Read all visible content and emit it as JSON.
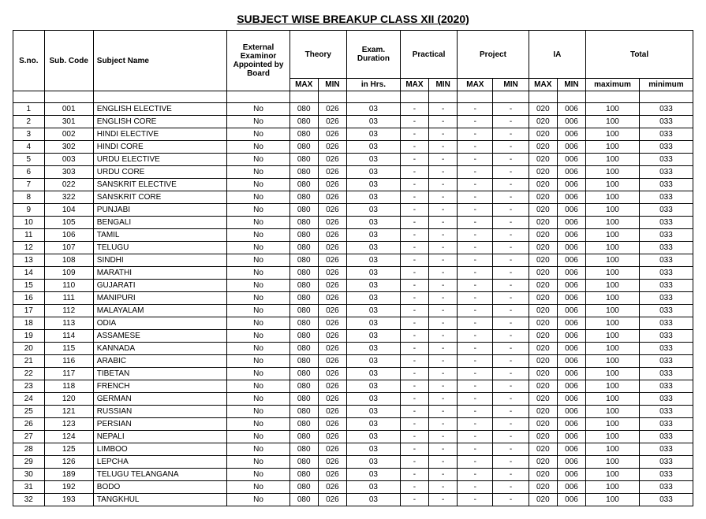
{
  "title": "SUBJECT WISE BREAKUP CLASS XII (2020)",
  "headers": {
    "sno": "S.no.",
    "subCode": "Sub. Code",
    "subjectName": "Subject Name",
    "examiner": "External Examinor Appointed by Board",
    "theory": "Theory",
    "examDuration": "Exam. Duration",
    "practical": "Practical",
    "project": "Project",
    "ia": "IA",
    "total": "Total",
    "max": "MAX",
    "min": "MIN",
    "inHrs": "in Hrs.",
    "maximum": "maximum",
    "minimum": "minimum"
  },
  "rows": [
    {
      "sno": "1",
      "code": "001",
      "name": "ENGLISH ELECTIVE",
      "ex": "No",
      "tmax": "080",
      "tmin": "026",
      "dur": "03",
      "pmax": "-",
      "pmin": "-",
      "prmax": "-",
      "prmin": "-",
      "iamax": "020",
      "iamin": "006",
      "totmax": "100",
      "totmin": "033"
    },
    {
      "sno": "2",
      "code": "301",
      "name": "ENGLISH CORE",
      "ex": "No",
      "tmax": "080",
      "tmin": "026",
      "dur": "03",
      "pmax": "-",
      "pmin": "-",
      "prmax": "-",
      "prmin": "-",
      "iamax": "020",
      "iamin": "006",
      "totmax": "100",
      "totmin": "033"
    },
    {
      "sno": "3",
      "code": "002",
      "name": "HINDI ELECTIVE",
      "ex": "No",
      "tmax": "080",
      "tmin": "026",
      "dur": "03",
      "pmax": "-",
      "pmin": "-",
      "prmax": "-",
      "prmin": "-",
      "iamax": "020",
      "iamin": "006",
      "totmax": "100",
      "totmin": "033"
    },
    {
      "sno": "4",
      "code": "302",
      "name": "HINDI CORE",
      "ex": "No",
      "tmax": "080",
      "tmin": "026",
      "dur": "03",
      "pmax": "-",
      "pmin": "-",
      "prmax": "-",
      "prmin": "-",
      "iamax": "020",
      "iamin": "006",
      "totmax": "100",
      "totmin": "033"
    },
    {
      "sno": "5",
      "code": "003",
      "name": "URDU ELECTIVE",
      "ex": "No",
      "tmax": "080",
      "tmin": "026",
      "dur": "03",
      "pmax": "-",
      "pmin": "-",
      "prmax": "-",
      "prmin": "-",
      "iamax": "020",
      "iamin": "006",
      "totmax": "100",
      "totmin": "033"
    },
    {
      "sno": "6",
      "code": "303",
      "name": "URDU CORE",
      "ex": "No",
      "tmax": "080",
      "tmin": "026",
      "dur": "03",
      "pmax": "-",
      "pmin": "-",
      "prmax": "-",
      "prmin": "-",
      "iamax": "020",
      "iamin": "006",
      "totmax": "100",
      "totmin": "033"
    },
    {
      "sno": "7",
      "code": "022",
      "name": "SANSKRIT ELECTIVE",
      "ex": "No",
      "tmax": "080",
      "tmin": "026",
      "dur": "03",
      "pmax": "-",
      "pmin": "-",
      "prmax": "-",
      "prmin": "-",
      "iamax": "020",
      "iamin": "006",
      "totmax": "100",
      "totmin": "033"
    },
    {
      "sno": "8",
      "code": "322",
      "name": "SANSKRIT CORE",
      "ex": "No",
      "tmax": "080",
      "tmin": "026",
      "dur": "03",
      "pmax": "-",
      "pmin": "-",
      "prmax": "-",
      "prmin": "-",
      "iamax": "020",
      "iamin": "006",
      "totmax": "100",
      "totmin": "033"
    },
    {
      "sno": "9",
      "code": "104",
      "name": "PUNJABI",
      "ex": "No",
      "tmax": "080",
      "tmin": "026",
      "dur": "03",
      "pmax": "-",
      "pmin": "-",
      "prmax": "-",
      "prmin": "-",
      "iamax": "020",
      "iamin": "006",
      "totmax": "100",
      "totmin": "033"
    },
    {
      "sno": "10",
      "code": "105",
      "name": "BENGALI",
      "ex": "No",
      "tmax": "080",
      "tmin": "026",
      "dur": "03",
      "pmax": "-",
      "pmin": "-",
      "prmax": "-",
      "prmin": "-",
      "iamax": "020",
      "iamin": "006",
      "totmax": "100",
      "totmin": "033"
    },
    {
      "sno": "11",
      "code": "106",
      "name": "TAMIL",
      "ex": "No",
      "tmax": "080",
      "tmin": "026",
      "dur": "03",
      "pmax": "-",
      "pmin": "-",
      "prmax": "-",
      "prmin": "-",
      "iamax": "020",
      "iamin": "006",
      "totmax": "100",
      "totmin": "033"
    },
    {
      "sno": "12",
      "code": "107",
      "name": "TELUGU",
      "ex": "No",
      "tmax": "080",
      "tmin": "026",
      "dur": "03",
      "pmax": "-",
      "pmin": "-",
      "prmax": "-",
      "prmin": "-",
      "iamax": "020",
      "iamin": "006",
      "totmax": "100",
      "totmin": "033"
    },
    {
      "sno": "13",
      "code": "108",
      "name": "SINDHI",
      "ex": "No",
      "tmax": "080",
      "tmin": "026",
      "dur": "03",
      "pmax": "-",
      "pmin": "-",
      "prmax": "-",
      "prmin": "-",
      "iamax": "020",
      "iamin": "006",
      "totmax": "100",
      "totmin": "033"
    },
    {
      "sno": "14",
      "code": "109",
      "name": "MARATHI",
      "ex": "No",
      "tmax": "080",
      "tmin": "026",
      "dur": "03",
      "pmax": "-",
      "pmin": "-",
      "prmax": "-",
      "prmin": "-",
      "iamax": "020",
      "iamin": "006",
      "totmax": "100",
      "totmin": "033"
    },
    {
      "sno": "15",
      "code": "110",
      "name": "GUJARATI",
      "ex": "No",
      "tmax": "080",
      "tmin": "026",
      "dur": "03",
      "pmax": "-",
      "pmin": "-",
      "prmax": "-",
      "prmin": "-",
      "iamax": "020",
      "iamin": "006",
      "totmax": "100",
      "totmin": "033"
    },
    {
      "sno": "16",
      "code": "111",
      "name": "MANIPURI",
      "ex": "No",
      "tmax": "080",
      "tmin": "026",
      "dur": "03",
      "pmax": "-",
      "pmin": "-",
      "prmax": "-",
      "prmin": "-",
      "iamax": "020",
      "iamin": "006",
      "totmax": "100",
      "totmin": "033"
    },
    {
      "sno": "17",
      "code": "112",
      "name": "MALAYALAM",
      "ex": "No",
      "tmax": "080",
      "tmin": "026",
      "dur": "03",
      "pmax": "-",
      "pmin": "-",
      "prmax": "-",
      "prmin": "-",
      "iamax": "020",
      "iamin": "006",
      "totmax": "100",
      "totmin": "033"
    },
    {
      "sno": "18",
      "code": "113",
      "name": "ODIA",
      "ex": "No",
      "tmax": "080",
      "tmin": "026",
      "dur": "03",
      "pmax": "-",
      "pmin": "-",
      "prmax": "-",
      "prmin": "-",
      "iamax": "020",
      "iamin": "006",
      "totmax": "100",
      "totmin": "033"
    },
    {
      "sno": "19",
      "code": "114",
      "name": "ASSAMESE",
      "ex": "No",
      "tmax": "080",
      "tmin": "026",
      "dur": "03",
      "pmax": "-",
      "pmin": "-",
      "prmax": "-",
      "prmin": "-",
      "iamax": "020",
      "iamin": "006",
      "totmax": "100",
      "totmin": "033"
    },
    {
      "sno": "20",
      "code": "115",
      "name": "KANNADA",
      "ex": "No",
      "tmax": "080",
      "tmin": "026",
      "dur": "03",
      "pmax": "-",
      "pmin": "-",
      "prmax": "-",
      "prmin": "-",
      "iamax": "020",
      "iamin": "006",
      "totmax": "100",
      "totmin": "033"
    },
    {
      "sno": "21",
      "code": "116",
      "name": "ARABIC",
      "ex": "No",
      "tmax": "080",
      "tmin": "026",
      "dur": "03",
      "pmax": "-",
      "pmin": "-",
      "prmax": "-",
      "prmin": "-",
      "iamax": "020",
      "iamin": "006",
      "totmax": "100",
      "totmin": "033"
    },
    {
      "sno": "22",
      "code": "117",
      "name": "TIBETAN",
      "ex": "No",
      "tmax": "080",
      "tmin": "026",
      "dur": "03",
      "pmax": "-",
      "pmin": "-",
      "prmax": "-",
      "prmin": "-",
      "iamax": "020",
      "iamin": "006",
      "totmax": "100",
      "totmin": "033"
    },
    {
      "sno": "23",
      "code": "118",
      "name": "FRENCH",
      "ex": "No",
      "tmax": "080",
      "tmin": "026",
      "dur": "03",
      "pmax": "-",
      "pmin": "-",
      "prmax": "-",
      "prmin": "-",
      "iamax": "020",
      "iamin": "006",
      "totmax": "100",
      "totmin": "033"
    },
    {
      "sno": "24",
      "code": "120",
      "name": "GERMAN",
      "ex": "No",
      "tmax": "080",
      "tmin": "026",
      "dur": "03",
      "pmax": "-",
      "pmin": "-",
      "prmax": "-",
      "prmin": "-",
      "iamax": "020",
      "iamin": "006",
      "totmax": "100",
      "totmin": "033"
    },
    {
      "sno": "25",
      "code": "121",
      "name": "RUSSIAN",
      "ex": "No",
      "tmax": "080",
      "tmin": "026",
      "dur": "03",
      "pmax": "-",
      "pmin": "-",
      "prmax": "-",
      "prmin": "-",
      "iamax": "020",
      "iamin": "006",
      "totmax": "100",
      "totmin": "033"
    },
    {
      "sno": "26",
      "code": "123",
      "name": "PERSIAN",
      "ex": "No",
      "tmax": "080",
      "tmin": "026",
      "dur": "03",
      "pmax": "-",
      "pmin": "-",
      "prmax": "-",
      "prmin": "-",
      "iamax": "020",
      "iamin": "006",
      "totmax": "100",
      "totmin": "033"
    },
    {
      "sno": "27",
      "code": "124",
      "name": "NEPALI",
      "ex": "No",
      "tmax": "080",
      "tmin": "026",
      "dur": "03",
      "pmax": "-",
      "pmin": "-",
      "prmax": "-",
      "prmin": "-",
      "iamax": "020",
      "iamin": "006",
      "totmax": "100",
      "totmin": "033"
    },
    {
      "sno": "28",
      "code": "125",
      "name": "LIMBOO",
      "ex": "No",
      "tmax": "080",
      "tmin": "026",
      "dur": "03",
      "pmax": "-",
      "pmin": "-",
      "prmax": "-",
      "prmin": "-",
      "iamax": "020",
      "iamin": "006",
      "totmax": "100",
      "totmin": "033"
    },
    {
      "sno": "29",
      "code": "126",
      "name": "LEPCHA",
      "ex": "No",
      "tmax": "080",
      "tmin": "026",
      "dur": "03",
      "pmax": "-",
      "pmin": "-",
      "prmax": "-",
      "prmin": "-",
      "iamax": "020",
      "iamin": "006",
      "totmax": "100",
      "totmin": "033"
    },
    {
      "sno": "30",
      "code": "189",
      "name": "TELUGU TELANGANA",
      "ex": "No",
      "tmax": "080",
      "tmin": "026",
      "dur": "03",
      "pmax": "-",
      "pmin": "-",
      "prmax": "-",
      "prmin": "-",
      "iamax": "020",
      "iamin": "006",
      "totmax": "100",
      "totmin": "033"
    },
    {
      "sno": "31",
      "code": "192",
      "name": "BODO",
      "ex": "No",
      "tmax": "080",
      "tmin": "026",
      "dur": "03",
      "pmax": "-",
      "pmin": "-",
      "prmax": "-",
      "prmin": "-",
      "iamax": "020",
      "iamin": "006",
      "totmax": "100",
      "totmin": "033"
    },
    {
      "sno": "32",
      "code": "193",
      "name": "TANGKHUL",
      "ex": "No",
      "tmax": "080",
      "tmin": "026",
      "dur": "03",
      "pmax": "-",
      "pmin": "-",
      "prmax": "-",
      "prmin": "-",
      "iamax": "020",
      "iamin": "006",
      "totmax": "100",
      "totmin": "033"
    }
  ],
  "colWidths": {
    "sno": "35px",
    "code": "55px",
    "name": "150px",
    "ex": "70px",
    "tmax": "32px",
    "tmin": "32px",
    "dur": "60px",
    "pmax": "32px",
    "pmin": "32px",
    "prmax": "40px",
    "prmin": "40px",
    "iamax": "32px",
    "iamin": "32px",
    "totmax": "60px",
    "totmin": "60px"
  }
}
